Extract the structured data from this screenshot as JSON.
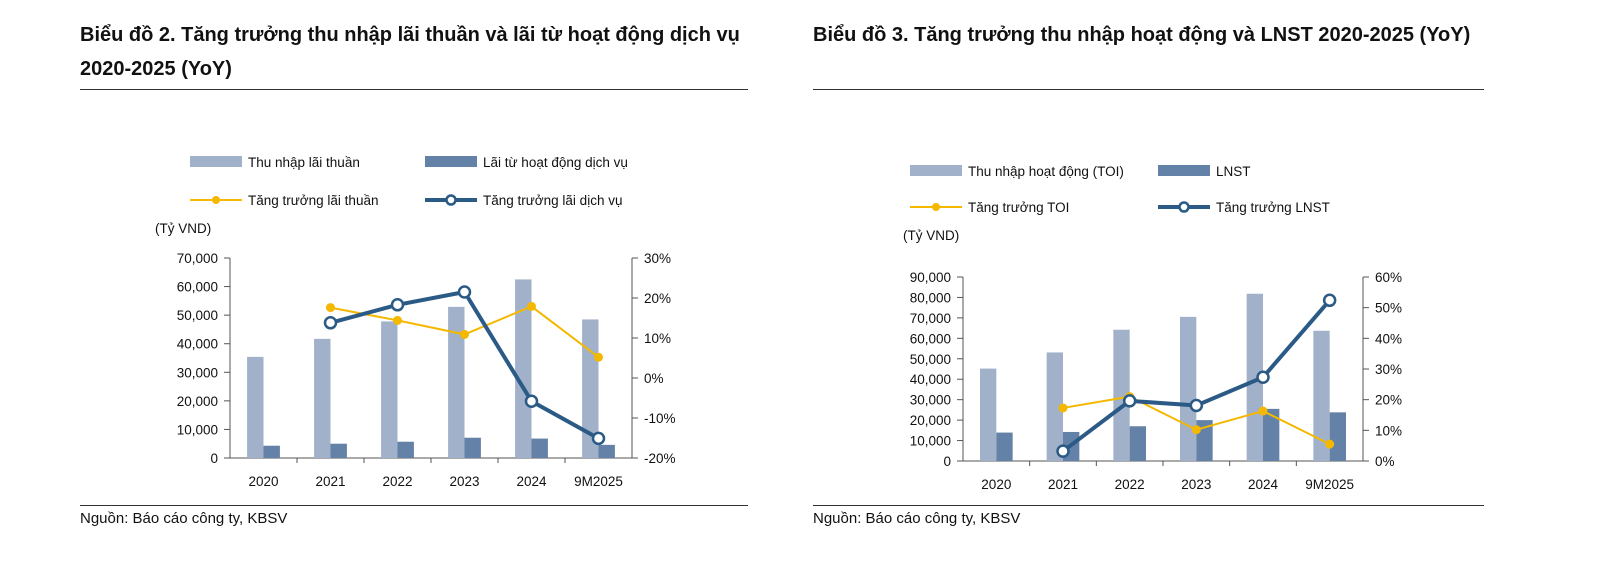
{
  "chart_data": [
    {
      "type": "bar+line",
      "title": "Biểu đồ 2. Tăng trưởng thu nhập lãi thuần và lãi từ hoạt động dịch vụ 2020-2025 (YoY)",
      "source": "Nguồn: Báo cáo công ty, KBSV",
      "ylabel": "(Tỷ VND)",
      "categories": [
        "2020",
        "2021",
        "2022",
        "2023",
        "2024",
        "9M2025"
      ],
      "ylim": [
        0,
        70000
      ],
      "yticks": [
        "0",
        "10,000",
        "20,000",
        "30,000",
        "40,000",
        "50,000",
        "60,000",
        "70,000"
      ],
      "y2lim": [
        -20,
        30
      ],
      "y2ticks": [
        "-20%",
        "-10%",
        "0%",
        "10%",
        "20%",
        "30%"
      ],
      "legend_placement": "top",
      "series": [
        {
          "name": "Thu nhập lãi thuần",
          "kind": "bar",
          "axis": "left",
          "color": "#a1b1c9",
          "values": [
            35400,
            41700,
            47800,
            52900,
            62500,
            48500
          ]
        },
        {
          "name": "Lãi từ hoạt động dịch vụ",
          "kind": "bar",
          "axis": "left",
          "color": "#6482a7",
          "values": [
            4300,
            5000,
            5700,
            7100,
            6800,
            4600
          ]
        },
        {
          "name": "Tăng trưởng lãi thuần",
          "kind": "line",
          "marker": "dot",
          "axis": "right",
          "color": "#f5b800",
          "values": [
            null,
            17.6,
            14.4,
            10.9,
            17.9,
            5.2
          ]
        },
        {
          "name": "Tăng trưởng lãi dịch vụ",
          "kind": "line",
          "marker": "ring",
          "axis": "right",
          "color": "#2a5a85",
          "values": [
            null,
            13.8,
            18.3,
            21.5,
            -5.8,
            -15.1
          ]
        }
      ]
    },
    {
      "type": "bar+line",
      "title": "Biểu đồ 3. Tăng trưởng thu nhập hoạt động và LNST 2020-2025 (YoY)",
      "source": "Nguồn: Báo cáo công ty, KBSV",
      "ylabel": "(Tỷ VND)",
      "categories": [
        "2020",
        "2021",
        "2022",
        "2023",
        "2024",
        "9M2025"
      ],
      "ylim": [
        0,
        90000
      ],
      "yticks": [
        "0",
        "10,000",
        "20,000",
        "30,000",
        "40,000",
        "50,000",
        "60,000",
        "70,000",
        "80,000",
        "90,000"
      ],
      "y2lim": [
        0,
        60
      ],
      "y2ticks": [
        "0%",
        "10%",
        "20%",
        "30%",
        "40%",
        "50%",
        "60%"
      ],
      "legend_placement": "top",
      "series": [
        {
          "name": "Thu nhập hoạt động (TOI)",
          "kind": "bar",
          "axis": "left",
          "color": "#a1b1c9",
          "values": [
            45200,
            53100,
            64200,
            70500,
            81800,
            63700
          ]
        },
        {
          "name": "LNST",
          "kind": "bar",
          "axis": "left",
          "color": "#6482a7",
          "values": [
            13900,
            14200,
            17000,
            20000,
            25500,
            23800
          ]
        },
        {
          "name": "Tăng trưởng TOI",
          "kind": "line",
          "marker": "dot",
          "axis": "right",
          "color": "#f5b800",
          "values": [
            null,
            17.3,
            21.0,
            10.2,
            16.3,
            5.5
          ]
        },
        {
          "name": "Tăng trưởng LNST",
          "kind": "line",
          "marker": "ring",
          "axis": "right",
          "color": "#2a5a85",
          "values": [
            null,
            3.2,
            19.6,
            18.1,
            27.3,
            52.4
          ]
        }
      ]
    }
  ]
}
